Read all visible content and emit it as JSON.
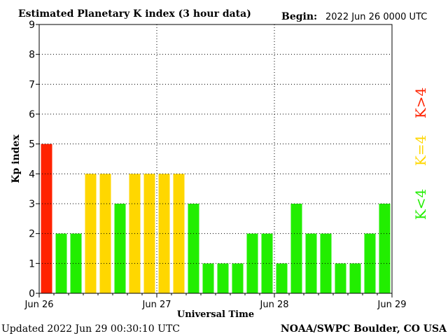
{
  "header": {
    "title": "Estimated Planetary K index (3 hour data)",
    "begin_label": "Begin:",
    "begin_value": "2022 Jun 26 0000 UTC"
  },
  "footer": {
    "updated": "Updated 2022 Jun 29 00:30:10 UTC",
    "source": "NOAA/SWPC Boulder, CO USA"
  },
  "legend": {
    "items": [
      {
        "label": "K<4",
        "color": "#22ee00"
      },
      {
        "label": "K=4",
        "color": "#ffd700"
      },
      {
        "label": "K>4",
        "color": "#ff2200"
      }
    ]
  },
  "chart_data": {
    "type": "bar",
    "title": "Estimated Planetary K index (3 hour data)",
    "xlabel": "Universal Time",
    "ylabel": "Kp index",
    "ylim": [
      0,
      9
    ],
    "y_ticks": [
      "0",
      "1",
      "2",
      "3",
      "4",
      "5",
      "6",
      "7",
      "8",
      "9"
    ],
    "x_ticks": [
      "Jun 26",
      "Jun 27",
      "Jun 28",
      "Jun 29"
    ],
    "grid": true,
    "legend_position": "right",
    "interval_hours": 3,
    "values": [
      5,
      2,
      2,
      4,
      4,
      3,
      4,
      4,
      4,
      4,
      3,
      1,
      1,
      1,
      2,
      2,
      1,
      3,
      2,
      2,
      1,
      1,
      2,
      3
    ],
    "colors": {
      "low": "#22ee00",
      "storm_threshold": "#ffd700",
      "storm": "#ff2200"
    }
  }
}
